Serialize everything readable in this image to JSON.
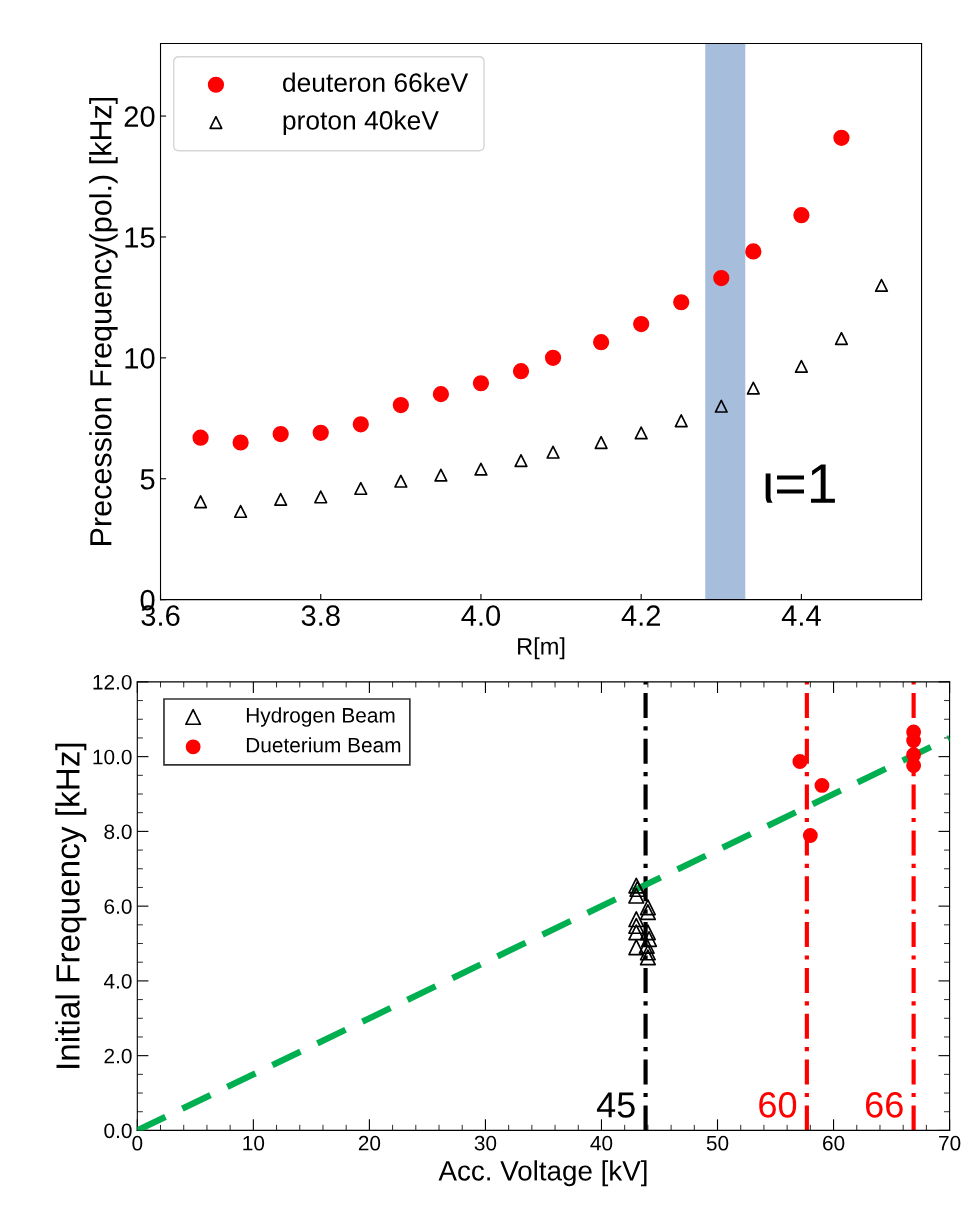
{
  "chart_data": [
    {
      "type": "scatter",
      "ylabel": "Precession Frequency(pol.) [kHz]",
      "xlabel": "R[m]",
      "xlim": [
        3.6,
        4.55
      ],
      "ylim": [
        0,
        23
      ],
      "xticks": [
        3.6,
        3.8,
        {
          "value": 4,
          "label": "4.0"
        },
        4.2,
        4.4
      ],
      "yticks": [
        0,
        5,
        10,
        15,
        20
      ],
      "legend": "top left",
      "grid": false,
      "bands": [
        {
          "axis": "x",
          "from": 4.28,
          "to": 4.33,
          "color": "#a6bedc"
        }
      ],
      "annotations": [
        "ι=1"
      ],
      "series": [
        {
          "name": "deuteron 66keV",
          "color": "#ff0000",
          "marker": "circle",
          "x": [
            3.65,
            3.7,
            3.75,
            3.8,
            3.85,
            3.9,
            3.95,
            4.0,
            4.05,
            4.09,
            4.15,
            4.2,
            4.25,
            4.3,
            4.34,
            4.4,
            4.45
          ],
          "values": [
            6.7,
            6.5,
            6.85,
            6.9,
            7.25,
            8.05,
            8.5,
            8.95,
            9.45,
            10.0,
            10.65,
            11.4,
            12.3,
            13.3,
            14.4,
            15.9,
            19.1
          ]
        },
        {
          "name": "proton 40keV",
          "color": "#000000",
          "marker": "triangle",
          "x": [
            3.65,
            3.7,
            3.75,
            3.8,
            3.85,
            3.9,
            3.95,
            4.0,
            4.05,
            4.09,
            4.15,
            4.2,
            4.25,
            4.3,
            4.34,
            4.4,
            4.45,
            4.5
          ],
          "values": [
            4.05,
            3.65,
            4.15,
            4.25,
            4.6,
            4.9,
            5.15,
            5.4,
            5.75,
            6.1,
            6.5,
            6.9,
            7.4,
            8.0,
            8.75,
            9.65,
            10.8,
            13.0
          ]
        }
      ]
    },
    {
      "type": "scatter",
      "ylabel": "Initial Frequency [kHz]",
      "xlabel": "Acc. Voltage [kV]",
      "xlim": [
        0,
        70
      ],
      "ylim": [
        0,
        12
      ],
      "xticks": [
        0,
        10,
        20,
        30,
        40,
        50,
        60,
        70
      ],
      "yticks": [
        {
          "value": 0,
          "label": "0.0"
        },
        {
          "value": 2,
          "label": "2.0"
        },
        {
          "value": 4,
          "label": "4.0"
        },
        {
          "value": 6,
          "label": "6.0"
        },
        {
          "value": 8,
          "label": "8.0"
        },
        {
          "value": 10,
          "label": "10.0"
        },
        {
          "value": 12,
          "label": "12.0"
        }
      ],
      "legend": "top left",
      "grid": false,
      "ref_lines": [
        {
          "axis": "x",
          "value": 43.8,
          "color": "#000000",
          "line_style": "dashdot"
        },
        {
          "axis": "x",
          "value": 57.7,
          "color": "#ff0000",
          "line_style": "dashdot"
        },
        {
          "axis": "x",
          "value": 66.9,
          "color": "#ff0000",
          "line_style": "dashdot"
        }
      ],
      "annotations": [
        "45",
        "60",
        "66"
      ],
      "series": [
        {
          "name": "Hydrogen Beam",
          "color": "#000000",
          "marker": "triangle",
          "x": [
            43.0,
            43.1,
            43.0,
            44.0,
            44.0,
            43.0,
            43.0,
            43.0,
            44.0,
            44.1,
            43.0,
            43.9,
            44.0,
            44.0
          ],
          "values": [
            6.55,
            6.46,
            6.28,
            5.97,
            5.84,
            5.65,
            5.47,
            5.3,
            5.3,
            5.12,
            4.9,
            4.94,
            4.76,
            4.63
          ]
        },
        {
          "name": "Dueterium Beam",
          "color": "#ff0000",
          "marker": "circle",
          "x": [
            57.1,
            58.0,
            59.0,
            66.9,
            66.9,
            66.9,
            66.9
          ],
          "values": [
            9.87,
            7.89,
            9.23,
            10.66,
            10.43,
            10.05,
            9.76
          ]
        },
        {
          "type": "line",
          "color": "#00b050",
          "line_style": "dashed",
          "marker": "none",
          "x": [
            0,
            70
          ],
          "values": [
            0,
            10.5
          ]
        }
      ]
    }
  ]
}
